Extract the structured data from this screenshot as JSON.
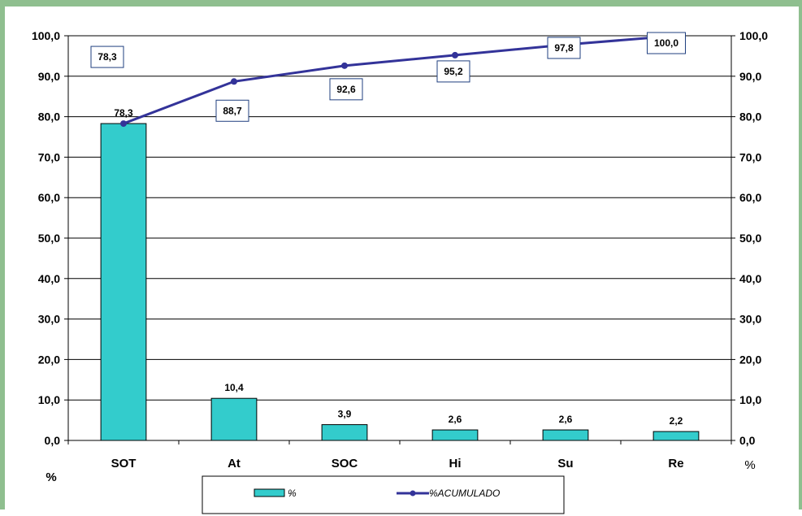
{
  "chart_data": {
    "type": "bar",
    "categories": [
      "SOT",
      "At",
      "SOC",
      "Hi",
      "Su",
      "Re"
    ],
    "series": [
      {
        "name": "%",
        "kind": "bar",
        "axis": "left",
        "color": "#33cccc",
        "values": [
          78.3,
          10.4,
          3.9,
          2.6,
          2.6,
          2.2
        ],
        "labels": [
          "78,3",
          "10,4",
          "3,9",
          "2,6",
          "2,6",
          "2,2"
        ]
      },
      {
        "name": "%ACUMULADO",
        "kind": "line",
        "axis": "right",
        "color": "#333399",
        "values": [
          78.3,
          88.7,
          92.6,
          95.2,
          97.8,
          100.0
        ],
        "labels": [
          "78,3",
          "88,7",
          "92,6",
          "95,2",
          "97,8",
          "100,0"
        ]
      }
    ],
    "ylim": [
      0,
      100
    ],
    "yticks": [
      "0,0",
      "10,0",
      "20,0",
      "30,0",
      "40,0",
      "50,0",
      "60,0",
      "70,0",
      "80,0",
      "90,0",
      "100,0"
    ],
    "ylabel_left": "%",
    "ylabel_right": "%",
    "grid": true,
    "legend_position": "bottom"
  }
}
